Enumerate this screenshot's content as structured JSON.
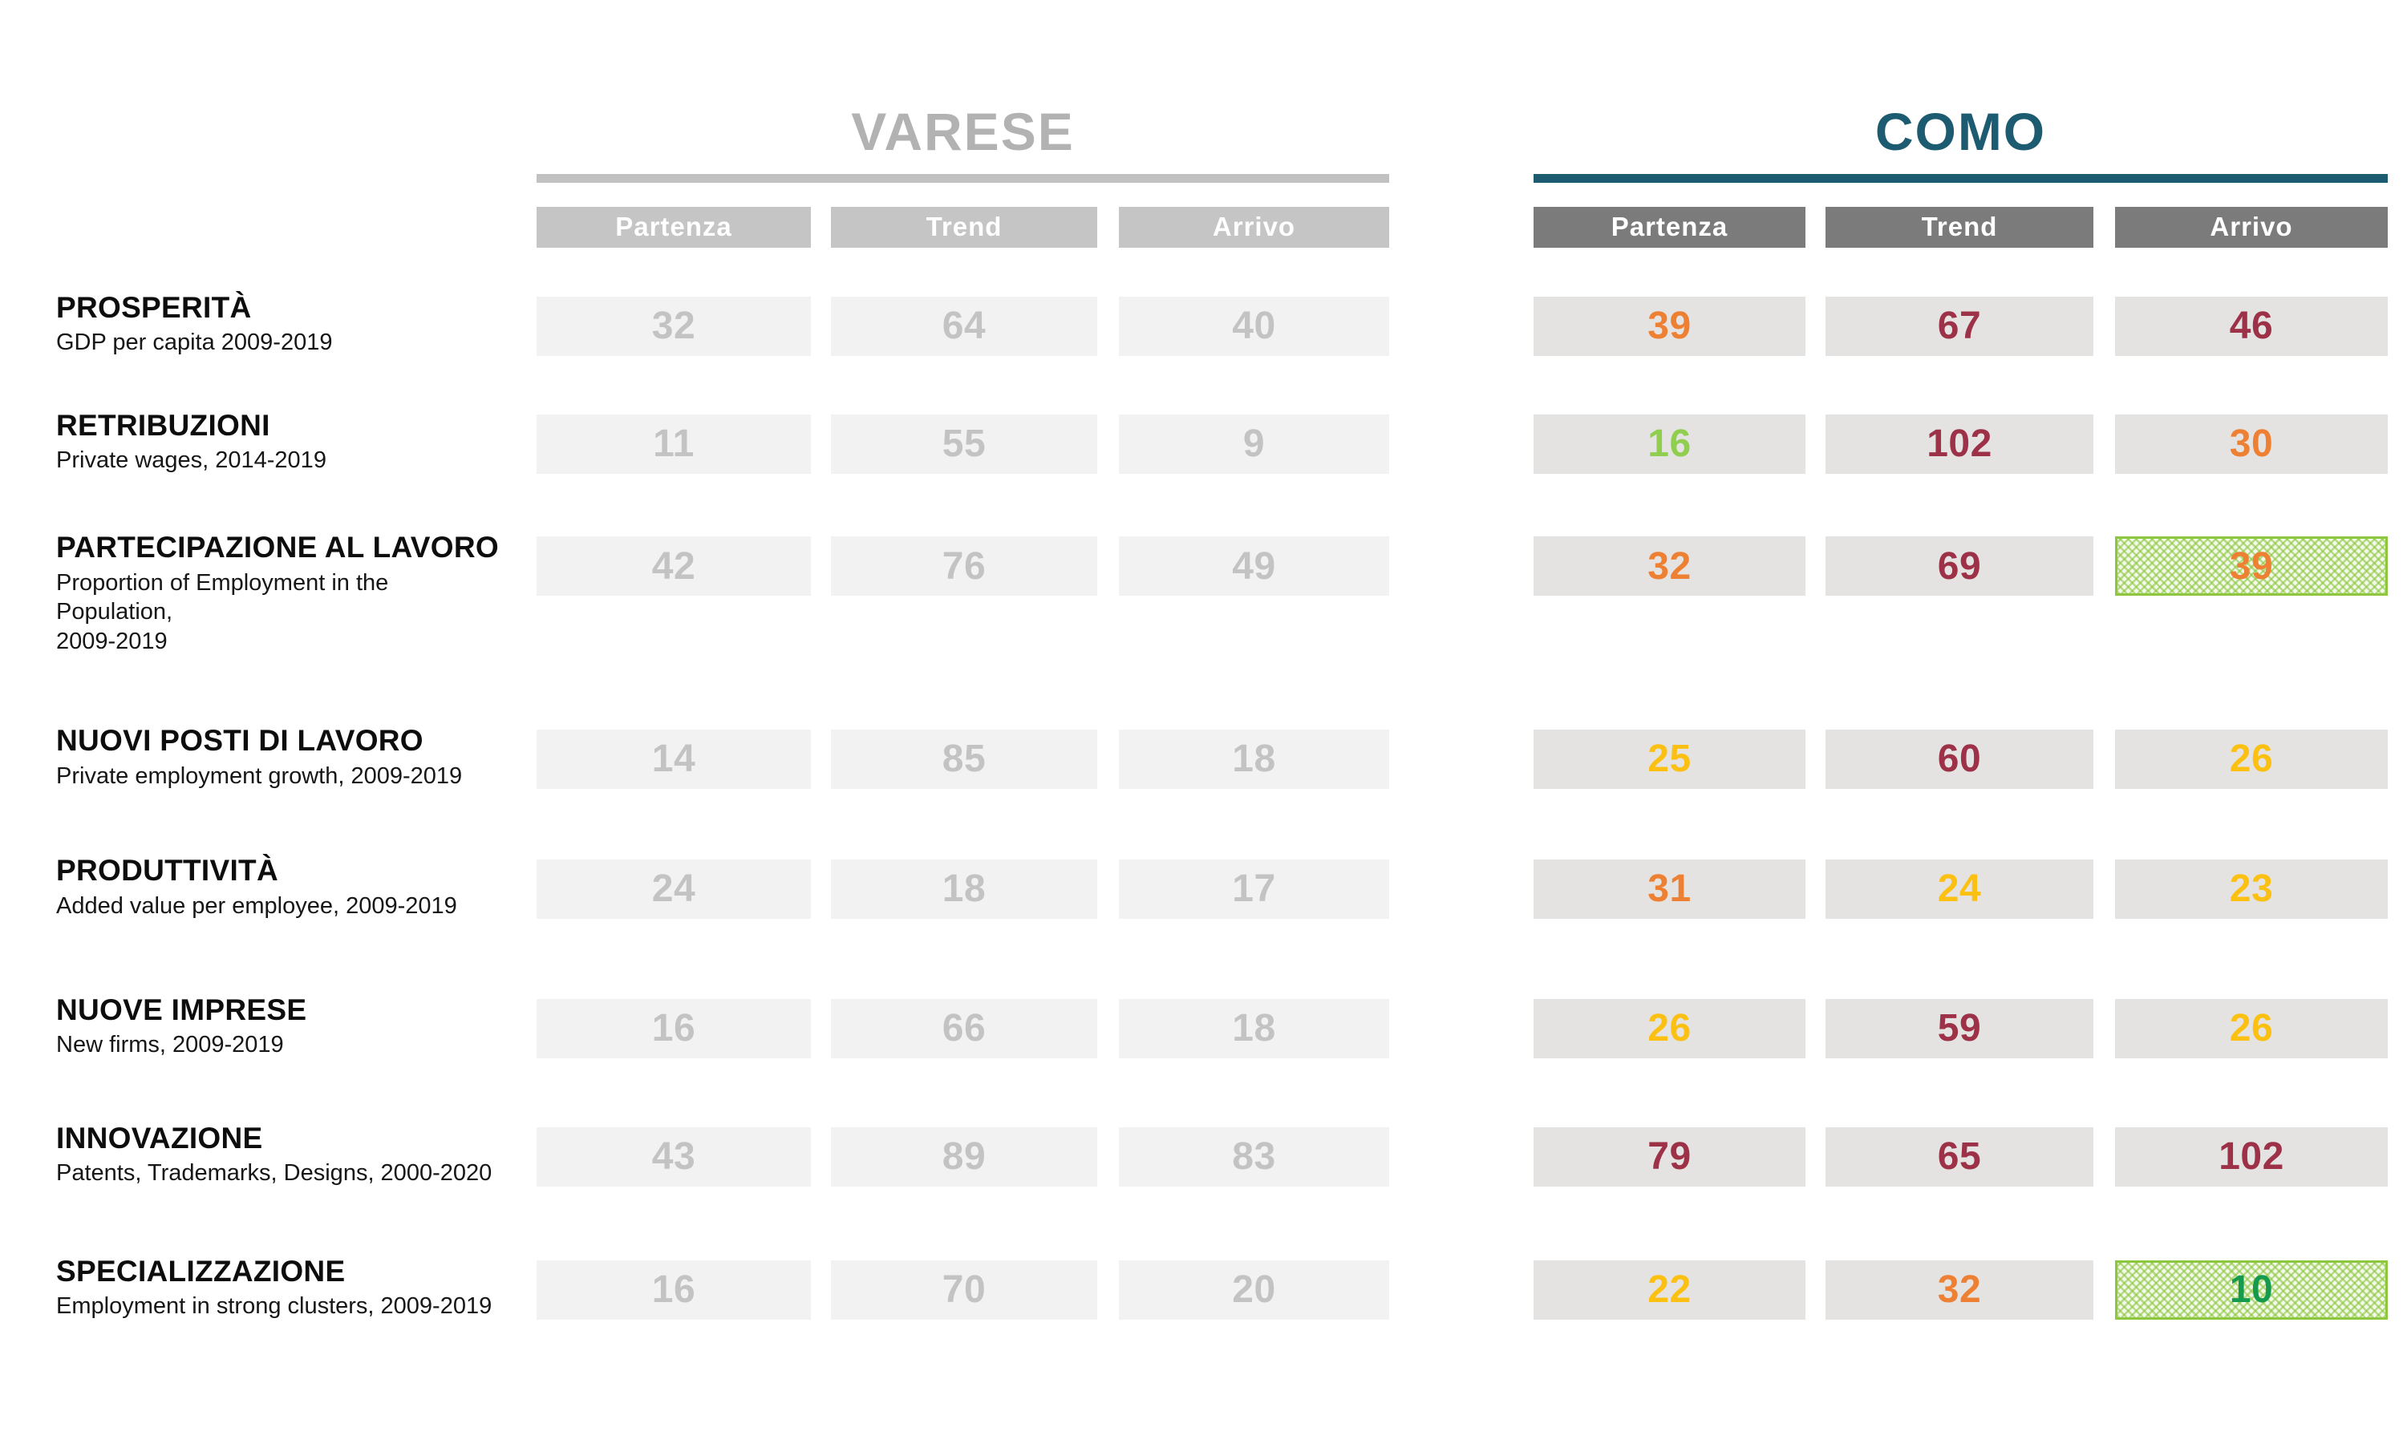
{
  "palette": {
    "orange": "#ED8032",
    "maroon": "#9C3148",
    "yellow": "#FCC013",
    "green_light": "#8FCE4E",
    "green_dark": "#169B4E",
    "varese_title": "#B2B2B2",
    "varese_rule": "#C1C1C1",
    "varese_header_bg": "#C5C5C5",
    "varese_cell_bg": "#F2F2F2",
    "varese_value": "#C3C3C3",
    "como_title": "#1D5B70",
    "como_rule": "#1D5B70",
    "como_header_bg": "#7B7B7B",
    "como_cell_bg": "#E4E3E2",
    "highlight_border": "#8DC63F",
    "highlight_bg": "#F4FAEB",
    "highlight_mesh": "#8CC63F"
  },
  "chart_data": {
    "type": "table",
    "groups": [
      {
        "name": "VARESE",
        "columns": [
          "Partenza",
          "Trend",
          "Arrivo"
        ],
        "muted": true
      },
      {
        "name": "COMO",
        "columns": [
          "Partenza",
          "Trend",
          "Arrivo"
        ],
        "muted": false
      }
    ],
    "rows": [
      {
        "label": "PROSPERITÀ",
        "sublabel": "GDP per capita 2009-2019",
        "varese": [
          32,
          64,
          40
        ],
        "como": [
          {
            "value": 39,
            "color": "orange",
            "highlighted": false
          },
          {
            "value": 67,
            "color": "maroon",
            "highlighted": false
          },
          {
            "value": 46,
            "color": "maroon",
            "highlighted": false
          }
        ]
      },
      {
        "label": "RETRIBUZIONI",
        "sublabel": "Private wages, 2014-2019",
        "varese": [
          11,
          55,
          9
        ],
        "como": [
          {
            "value": 16,
            "color": "green_light",
            "highlighted": false
          },
          {
            "value": 102,
            "color": "maroon",
            "highlighted": false
          },
          {
            "value": 30,
            "color": "orange",
            "highlighted": false
          }
        ]
      },
      {
        "label": "PARTECIPAZIONE AL LAVORO",
        "sublabel": "Proportion of Employment in the Population,\n 2009-2019",
        "varese": [
          42,
          76,
          49
        ],
        "como": [
          {
            "value": 32,
            "color": "orange",
            "highlighted": false
          },
          {
            "value": 69,
            "color": "maroon",
            "highlighted": false
          },
          {
            "value": 39,
            "color": "orange",
            "highlighted": true
          }
        ]
      },
      {
        "label": "NUOVI POSTI DI LAVORO",
        "sublabel": "Private employment growth, 2009-2019",
        "varese": [
          14,
          85,
          18
        ],
        "como": [
          {
            "value": 25,
            "color": "yellow",
            "highlighted": false
          },
          {
            "value": 60,
            "color": "maroon",
            "highlighted": false
          },
          {
            "value": 26,
            "color": "yellow",
            "highlighted": false
          }
        ]
      },
      {
        "label": "PRODUTTIVITÀ",
        "sublabel": "Added value per employee, 2009-2019",
        "varese": [
          24,
          18,
          17
        ],
        "como": [
          {
            "value": 31,
            "color": "orange",
            "highlighted": false
          },
          {
            "value": 24,
            "color": "yellow",
            "highlighted": false
          },
          {
            "value": 23,
            "color": "yellow",
            "highlighted": false
          }
        ]
      },
      {
        "label": "NUOVE IMPRESE",
        "sublabel": "New firms, 2009-2019",
        "varese": [
          16,
          66,
          18
        ],
        "como": [
          {
            "value": 26,
            "color": "yellow",
            "highlighted": false
          },
          {
            "value": 59,
            "color": "maroon",
            "highlighted": false
          },
          {
            "value": 26,
            "color": "yellow",
            "highlighted": false
          }
        ]
      },
      {
        "label": "INNOVAZIONE",
        "sublabel": "Patents, Trademarks, Designs, 2000-2020",
        "varese": [
          43,
          89,
          83
        ],
        "como": [
          {
            "value": 79,
            "color": "maroon",
            "highlighted": false
          },
          {
            "value": 65,
            "color": "maroon",
            "highlighted": false
          },
          {
            "value": 102,
            "color": "maroon",
            "highlighted": false
          }
        ]
      },
      {
        "label": "SPECIALIZZAZIONE",
        "sublabel": "Employment in strong clusters, 2009-2019",
        "varese": [
          16,
          70,
          20
        ],
        "como": [
          {
            "value": 22,
            "color": "yellow",
            "highlighted": false
          },
          {
            "value": 32,
            "color": "orange",
            "highlighted": false
          },
          {
            "value": 10,
            "color": "green_dark",
            "highlighted": true
          }
        ]
      }
    ]
  }
}
